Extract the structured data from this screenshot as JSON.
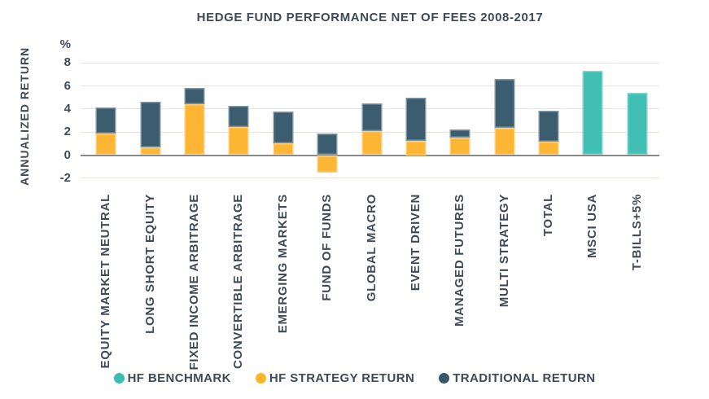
{
  "title": "HEDGE FUND PERFORMANCE NET OF FEES 2008-2017",
  "chart_data": {
    "type": "bar",
    "stacked": true,
    "title": "HEDGE FUND PERFORMANCE NET OF FEES 2008-2017",
    "ylabel": "ANNUALIZED RETURN",
    "unit": "%",
    "yticks": [
      8,
      6,
      4,
      2,
      0,
      -2
    ],
    "ylim": [
      -2.8,
      9.2
    ],
    "grid": "horizontal",
    "legend_position": "bottom",
    "categories": [
      "EQUITY MARKET NEUTRAL",
      "LONG SHORT EQUITY",
      "FIXED INCOME ARBITRAGE",
      "CONVERTIBLE ARBITRAGE",
      "EMERGING MARKETS",
      "FUND OF FUNDS",
      "GLOBAL MACRO",
      "EVENT DRIVEN",
      "MANAGED FUTURES",
      "MULTI STRATEGY",
      "TOTAL",
      "MSCI USA",
      "T-BILLS+5%"
    ],
    "series": [
      {
        "name": "HF STRATEGY RETURN",
        "color": "#FCB42E",
        "values": [
          1.9,
          0.7,
          4.4,
          2.45,
          1.0,
          -1.5,
          2.05,
          1.25,
          1.55,
          2.35,
          1.15,
          null,
          null
        ]
      },
      {
        "name": "TRADITIONAL RETURN",
        "color": "#36586C",
        "values": [
          2.2,
          3.9,
          1.45,
          1.8,
          2.75,
          1.85,
          2.45,
          3.75,
          0.7,
          4.25,
          2.7,
          null,
          null
        ]
      },
      {
        "name": "HF BENCHMARK",
        "color": "#3CBDB2",
        "values": [
          null,
          null,
          null,
          null,
          null,
          null,
          null,
          null,
          null,
          null,
          null,
          7.3,
          5.4
        ]
      }
    ]
  },
  "legend": [
    {
      "label": "HF BENCHMARK",
      "color": "#3CBDB2"
    },
    {
      "label": "HF STRATEGY RETURN",
      "color": "#FCB42E"
    },
    {
      "label": "TRADITIONAL RETURN",
      "color": "#36586C"
    }
  ],
  "colors": {
    "text": "#3E4A58",
    "gridline": "#EDE3DC",
    "zero_line": "#8A8A8A",
    "hf_strategy": "#FCB42E",
    "traditional": "#36586C",
    "benchmark": "#3CBDB2"
  }
}
